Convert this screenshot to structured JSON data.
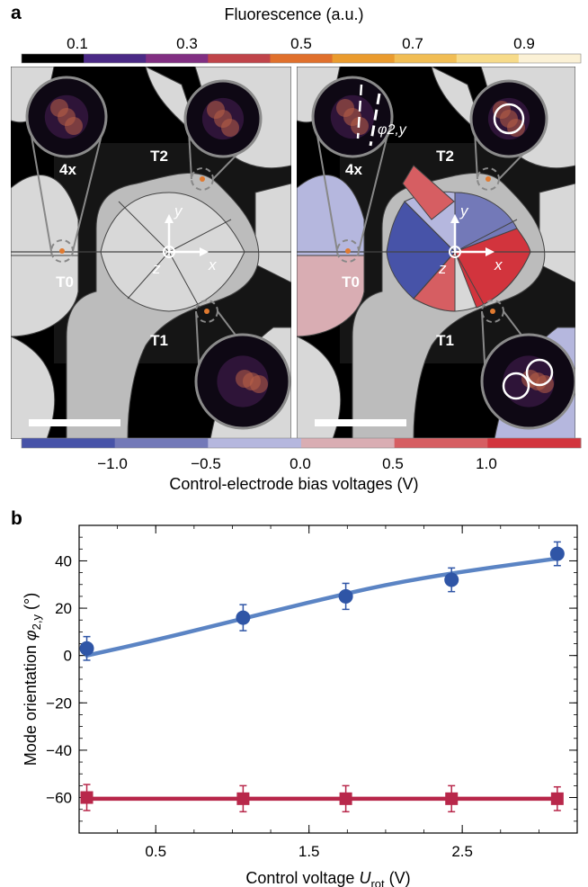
{
  "panel_a": {
    "letter": "a",
    "colorbar_top": {
      "title": "Fluorescence (a.u.)",
      "ticks": [
        "0.1",
        "0.3",
        "0.5",
        "0.7",
        "0.9"
      ],
      "colors": [
        "#000000",
        "#4b2a86",
        "#812f82",
        "#c0444a",
        "#e0702c",
        "#ea9b2e",
        "#f1bd54",
        "#f7db8a",
        "#fbf1d6"
      ]
    },
    "colorbar_bottom": {
      "title": "Control-electrode bias voltages (V)",
      "ticks": [
        "−1.0",
        "−0.5",
        "0.0",
        "0.5",
        "1.0"
      ],
      "colors": [
        "#4753a8",
        "#7379b8",
        "#b5b7de",
        "#d9adb3",
        "#d65e62",
        "#d2343d"
      ]
    },
    "images": [
      {
        "labels": {
          "t0": "T0",
          "t1": "T1",
          "t2": "T2",
          "mag": "4x",
          "x": "x",
          "y": "y",
          "z": "z"
        }
      },
      {
        "labels": {
          "t0": "T0",
          "t1": "T1",
          "t2": "T2",
          "mag": "4x",
          "x": "x",
          "y": "y",
          "z": "z",
          "phi": "φ2,y"
        }
      }
    ]
  },
  "panel_b": {
    "letter": "b"
  },
  "chart_data": {
    "type": "scatter",
    "xlabel": "Control voltage U_rot (V)",
    "ylabel": "Mode orientation φ2,y (°)",
    "xlim": [
      0,
      3.25
    ],
    "ylim": [
      -75,
      55
    ],
    "x_ticks": [
      0.5,
      1.5,
      2.5
    ],
    "y_ticks": [
      40,
      20,
      0,
      -20,
      -40,
      -60
    ],
    "x_tick_labels": [
      "0.5",
      "1.5",
      "2.5"
    ],
    "y_tick_labels": [
      "40",
      "20",
      "0",
      "−20",
      "−40",
      "−60"
    ],
    "series": [
      {
        "marker": "circle",
        "color": "#2f55a6",
        "line_color": "#5b84c4",
        "x": [
          0.05,
          1.07,
          1.74,
          2.43,
          3.12
        ],
        "y": [
          3,
          16,
          25,
          32,
          43
        ],
        "err": [
          5,
          5.5,
          5.5,
          5,
          5
        ],
        "fit": {
          "x": [
            0.05,
            0.5,
            1.0,
            1.5,
            2.0,
            2.5,
            3.12
          ],
          "y": [
            0,
            6.5,
            14.5,
            22.5,
            30,
            35.5,
            41
          ]
        }
      },
      {
        "marker": "square",
        "color": "#b8274a",
        "line_color": "#b8274a",
        "x": [
          0.05,
          1.07,
          1.74,
          2.43,
          3.12
        ],
        "y": [
          -60,
          -60.5,
          -60.5,
          -60.5,
          -60.5
        ],
        "err": [
          5.5,
          5.5,
          5.5,
          5.5,
          5
        ],
        "fit": {
          "x": [
            0.05,
            3.12
          ],
          "y": [
            -60.5,
            -60.5
          ]
        }
      }
    ]
  }
}
